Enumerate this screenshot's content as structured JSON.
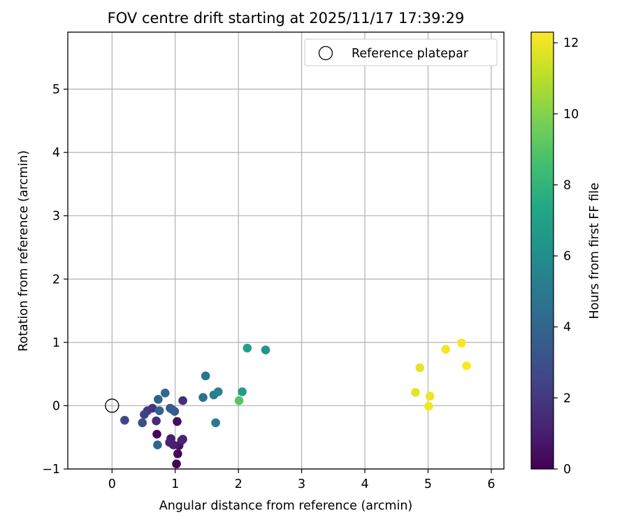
{
  "chart_data": {
    "type": "scatter",
    "title": "FOV centre drift starting at 2025/11/17 17:39:29",
    "xlabel": "Angular distance from reference (arcmin)",
    "ylabel": "Rotation from reference (arcmin)",
    "xlim": [
      -0.7,
      6.2
    ],
    "ylim": [
      -1.0,
      5.9
    ],
    "xticks": [
      0,
      1,
      2,
      3,
      4,
      5,
      6
    ],
    "yticks": [
      -1,
      0,
      1,
      2,
      3,
      4,
      5
    ],
    "grid": true,
    "legend": {
      "location": "top-right",
      "entries": [
        "Reference platepar"
      ]
    },
    "reference_point": {
      "x": 0,
      "y": 0,
      "label": "Reference platepar"
    },
    "colorbar": {
      "label": "Hours from first FF file",
      "colormap": "viridis",
      "range": [
        0,
        12.3
      ],
      "ticks": [
        0,
        2,
        4,
        6,
        8,
        10,
        12
      ]
    },
    "points": [
      {
        "x": 1.02,
        "y": -0.92,
        "h": 0.1
      },
      {
        "x": 1.04,
        "y": -0.76,
        "h": 0.2
      },
      {
        "x": 0.71,
        "y": -0.45,
        "h": 0.3
      },
      {
        "x": 1.03,
        "y": -0.25,
        "h": 0.4
      },
      {
        "x": 1.06,
        "y": -0.63,
        "h": 0.6
      },
      {
        "x": 0.93,
        "y": -0.52,
        "h": 0.8
      },
      {
        "x": 1.1,
        "y": -0.55,
        "h": 0.9
      },
      {
        "x": 0.97,
        "y": -0.62,
        "h": 1.1
      },
      {
        "x": 0.91,
        "y": -0.58,
        "h": 1.2
      },
      {
        "x": 1.12,
        "y": -0.53,
        "h": 1.3
      },
      {
        "x": 0.7,
        "y": -0.24,
        "h": 1.5
      },
      {
        "x": 1.12,
        "y": 0.08,
        "h": 1.6
      },
      {
        "x": 0.64,
        "y": -0.04,
        "h": 1.8
      },
      {
        "x": 0.56,
        "y": -0.08,
        "h": 2.0
      },
      {
        "x": 0.51,
        "y": -0.14,
        "h": 2.4
      },
      {
        "x": 0.2,
        "y": -0.23,
        "h": 2.6
      },
      {
        "x": 0.48,
        "y": -0.27,
        "h": 2.9
      },
      {
        "x": 0.92,
        "y": -0.04,
        "h": 3.2
      },
      {
        "x": 0.99,
        "y": -0.09,
        "h": 3.4
      },
      {
        "x": 0.95,
        "y": -0.06,
        "h": 3.6
      },
      {
        "x": 0.75,
        "y": -0.08,
        "h": 3.8
      },
      {
        "x": 0.73,
        "y": 0.1,
        "h": 3.9
      },
      {
        "x": 0.72,
        "y": -0.62,
        "h": 4.0
      },
      {
        "x": 0.84,
        "y": 0.2,
        "h": 4.2
      },
      {
        "x": 1.44,
        "y": 0.13,
        "h": 4.6
      },
      {
        "x": 1.48,
        "y": 0.47,
        "h": 4.8
      },
      {
        "x": 1.64,
        "y": -0.27,
        "h": 5.0
      },
      {
        "x": 1.61,
        "y": 0.17,
        "h": 5.2
      },
      {
        "x": 1.68,
        "y": 0.22,
        "h": 5.4
      },
      {
        "x": 2.43,
        "y": 0.88,
        "h": 6.4
      },
      {
        "x": 2.06,
        "y": 0.22,
        "h": 6.8
      },
      {
        "x": 2.14,
        "y": 0.91,
        "h": 7.0
      },
      {
        "x": 2.01,
        "y": 0.08,
        "h": 9.0
      },
      {
        "x": 4.8,
        "y": 0.21,
        "h": 11.8
      },
      {
        "x": 4.87,
        "y": 0.6,
        "h": 11.9
      },
      {
        "x": 5.03,
        "y": 0.15,
        "h": 12.0
      },
      {
        "x": 5.01,
        "y": -0.01,
        "h": 12.1
      },
      {
        "x": 5.28,
        "y": 0.89,
        "h": 12.1
      },
      {
        "x": 5.53,
        "y": 0.99,
        "h": 12.2
      },
      {
        "x": 5.61,
        "y": 0.63,
        "h": 12.3
      }
    ]
  }
}
